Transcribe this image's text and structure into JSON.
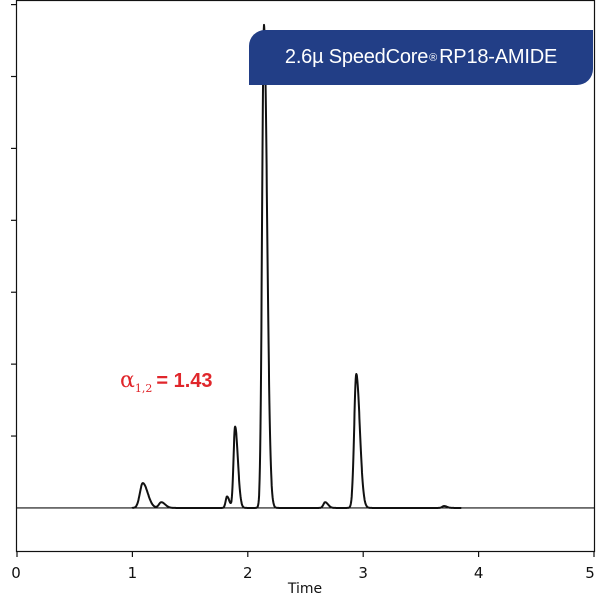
{
  "chart_data": {
    "type": "line",
    "title": "2.6µ SpeedCore® RP18-AMIDE",
    "title_parts": {
      "main": "2.6µ SpeedCore",
      "mark": "®",
      "tail": " RP18-AMIDE"
    },
    "annotation": {
      "symbol": "α",
      "subscript": "1,2",
      "text": "= 1.43",
      "color": "#e0262b"
    },
    "xlabel": "Time",
    "ylabel": "",
    "xlim": [
      0,
      5
    ],
    "x_ticks": [
      "0",
      "1",
      "2",
      "3",
      "4",
      "5"
    ],
    "y_axis_labels": false,
    "baseline": 0,
    "ylim": [
      -45,
      530
    ],
    "peaks": [
      {
        "rt": 1.09,
        "height": 26,
        "width": 0.025
      },
      {
        "rt": 1.25,
        "height": 6,
        "width": 0.02
      },
      {
        "rt": 1.82,
        "height": 12,
        "width": 0.012
      },
      {
        "rt": 1.89,
        "height": 85,
        "width": 0.014
      },
      {
        "rt": 2.14,
        "height": 505,
        "width": 0.016
      },
      {
        "rt": 2.67,
        "height": 6,
        "width": 0.015
      },
      {
        "rt": 2.94,
        "height": 140,
        "width": 0.018
      },
      {
        "rt": 3.7,
        "height": 2,
        "width": 0.015
      }
    ],
    "colors": {
      "trace": "#111111",
      "badge": "#223e86",
      "annotation": "#e0262b"
    }
  }
}
